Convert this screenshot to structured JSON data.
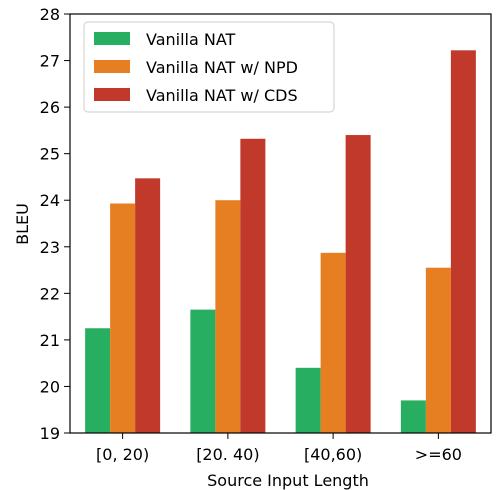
{
  "chart_data": {
    "type": "bar",
    "title": "",
    "xlabel": "Source Input Length",
    "ylabel": "BLEU",
    "categories": [
      "[0, 20)",
      "[20. 40)",
      "[40,60)",
      ">=60"
    ],
    "ylim": [
      19,
      28
    ],
    "yticks": [
      "19",
      "20",
      "21",
      "22",
      "23",
      "24",
      "25",
      "26",
      "27",
      "28"
    ],
    "grid": false,
    "legend_position": "top-left",
    "series": [
      {
        "name": "Vanilla NAT",
        "color": "#27ae60",
        "values": [
          21.25,
          21.65,
          20.4,
          19.7
        ]
      },
      {
        "name": "Vanilla NAT w/ NPD",
        "color": "#e67e22",
        "values": [
          23.93,
          24.0,
          22.87,
          22.55
        ]
      },
      {
        "name": "Vanilla NAT w/ CDS",
        "color": "#c0392b",
        "values": [
          24.47,
          25.32,
          25.4,
          27.22
        ]
      }
    ]
  }
}
